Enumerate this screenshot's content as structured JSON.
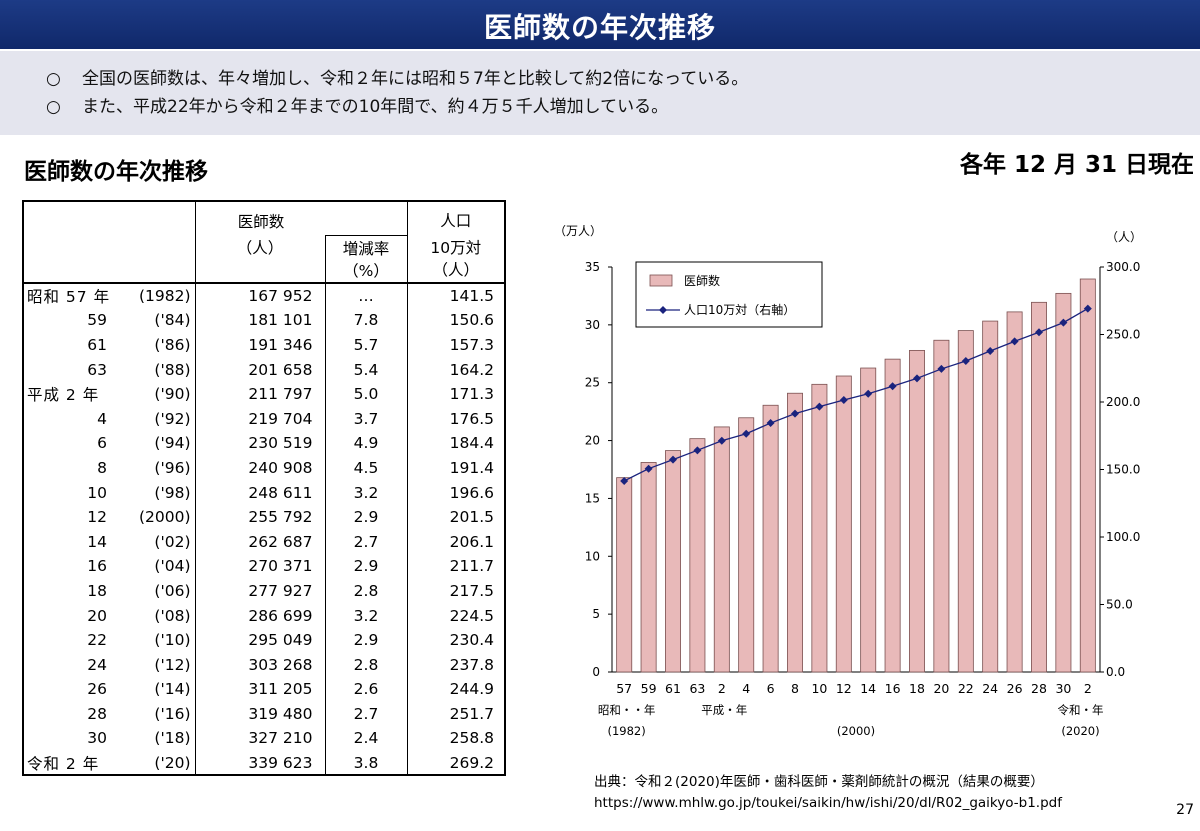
{
  "header": {
    "title": "医師数の年次推移"
  },
  "summary": {
    "lines": [
      {
        "mark": "○",
        "text": "全国の医師数は、年々増加し、令和２年には昭和５7年と比較して約2倍になっている。"
      },
      {
        "mark": "○",
        "text": "また、平成22年から令和２年までの10年間で、約４万５千人増加している。"
      }
    ]
  },
  "section_title": "医師数の年次推移",
  "as_of": "各年 12 月 31 日現在",
  "table": {
    "headers": {
      "doctors": "医師数",
      "doctors_unit": "（人）",
      "rate": "増減率",
      "rate_unit": "（%）",
      "pop": "人口",
      "pop2": "10万対",
      "pop_unit": "（人）"
    },
    "rows": [
      {
        "era": "昭和 57 年",
        "year": "(1982)",
        "doctors": "167 952",
        "rate": "…",
        "per100k": "141.5"
      },
      {
        "era": "59",
        "year": "('84)",
        "doctors": "181 101",
        "rate": "7.8",
        "per100k": "150.6"
      },
      {
        "era": "61",
        "year": "('86)",
        "doctors": "191 346",
        "rate": "5.7",
        "per100k": "157.3"
      },
      {
        "era": "63",
        "year": "('88)",
        "doctors": "201 658",
        "rate": "5.4",
        "per100k": "164.2"
      },
      {
        "era": "平成  2 年",
        "year": "('90)",
        "doctors": "211 797",
        "rate": "5.0",
        "per100k": "171.3"
      },
      {
        "era": "4",
        "year": "('92)",
        "doctors": "219 704",
        "rate": "3.7",
        "per100k": "176.5"
      },
      {
        "era": "6",
        "year": "('94)",
        "doctors": "230 519",
        "rate": "4.9",
        "per100k": "184.4"
      },
      {
        "era": "8",
        "year": "('96)",
        "doctors": "240 908",
        "rate": "4.5",
        "per100k": "191.4"
      },
      {
        "era": "10",
        "year": "('98)",
        "doctors": "248 611",
        "rate": "3.2",
        "per100k": "196.6"
      },
      {
        "era": "12",
        "year": "(2000)",
        "doctors": "255 792",
        "rate": "2.9",
        "per100k": "201.5"
      },
      {
        "era": "14",
        "year": "('02)",
        "doctors": "262 687",
        "rate": "2.7",
        "per100k": "206.1"
      },
      {
        "era": "16",
        "year": "('04)",
        "doctors": "270 371",
        "rate": "2.9",
        "per100k": "211.7"
      },
      {
        "era": "18",
        "year": "('06)",
        "doctors": "277 927",
        "rate": "2.8",
        "per100k": "217.5"
      },
      {
        "era": "20",
        "year": "('08)",
        "doctors": "286 699",
        "rate": "3.2",
        "per100k": "224.5"
      },
      {
        "era": "22",
        "year": "('10)",
        "doctors": "295 049",
        "rate": "2.9",
        "per100k": "230.4"
      },
      {
        "era": "24",
        "year": "('12)",
        "doctors": "303 268",
        "rate": "2.8",
        "per100k": "237.8"
      },
      {
        "era": "26",
        "year": "('14)",
        "doctors": "311 205",
        "rate": "2.6",
        "per100k": "244.9"
      },
      {
        "era": "28",
        "year": "('16)",
        "doctors": "319 480",
        "rate": "2.7",
        "per100k": "251.7"
      },
      {
        "era": "30",
        "year": "('18)",
        "doctors": "327 210",
        "rate": "2.4",
        "per100k": "258.8"
      },
      {
        "era": "令和  2 年",
        "year": "('20)",
        "doctors": "339 623",
        "rate": "3.8",
        "per100k": "269.2"
      }
    ]
  },
  "chart_data": {
    "type": "bar",
    "categories": [
      "57",
      "59",
      "61",
      "63",
      "2",
      "4",
      "6",
      "8",
      "10",
      "12",
      "14",
      "16",
      "18",
      "20",
      "22",
      "24",
      "26",
      "28",
      "30",
      "2"
    ],
    "series": [
      {
        "name": "医師数",
        "type": "bar",
        "axis": "left",
        "values": [
          16.7952,
          18.1101,
          19.1346,
          20.1658,
          21.1797,
          21.9704,
          23.0519,
          24.0908,
          24.8611,
          25.5792,
          26.2687,
          27.0371,
          27.7927,
          28.6699,
          29.5049,
          30.3268,
          31.1205,
          31.948,
          32.721,
          33.9623
        ]
      },
      {
        "name": "人口10万対（右軸）",
        "type": "line",
        "axis": "right",
        "values": [
          141.5,
          150.6,
          157.3,
          164.2,
          171.3,
          176.5,
          184.4,
          191.4,
          196.6,
          201.5,
          206.1,
          211.7,
          217.5,
          224.5,
          230.4,
          237.8,
          244.9,
          251.7,
          258.8,
          269.2
        ]
      }
    ],
    "left_axis": {
      "label": "（万人）",
      "ylim": [
        0,
        35
      ],
      "ticks": [
        "0",
        "5",
        "10",
        "15",
        "20",
        "25",
        "30",
        "35"
      ]
    },
    "right_axis": {
      "label": "（人）",
      "ylim": [
        0,
        300
      ],
      "ticks": [
        "0.0",
        "50.0",
        "100.0",
        "150.0",
        "200.0",
        "250.0",
        "300.0"
      ]
    },
    "x_annotations": {
      "start_era": "昭和・・年",
      "mid_era": "平成・年",
      "end_era": "令和・年",
      "start_year": "(1982)",
      "mid_year": "(2000)",
      "end_year": "(2020)"
    },
    "legend_position": "top-left",
    "grid": false,
    "colors": {
      "bar_fill": "#e8b9b9",
      "bar_stroke": "#7a5050",
      "line": "#1a237e",
      "marker": "#1a237e"
    }
  },
  "source": {
    "line1": "出典：令和２(2020)年医師・歯科医師・薬剤師統計の概況（結果の概要）",
    "line2": "https://www.mhlw.go.jp/toukei/saikin/hw/ishi/20/dl/R02_gaikyo-b1.pdf"
  },
  "page_number": "27"
}
